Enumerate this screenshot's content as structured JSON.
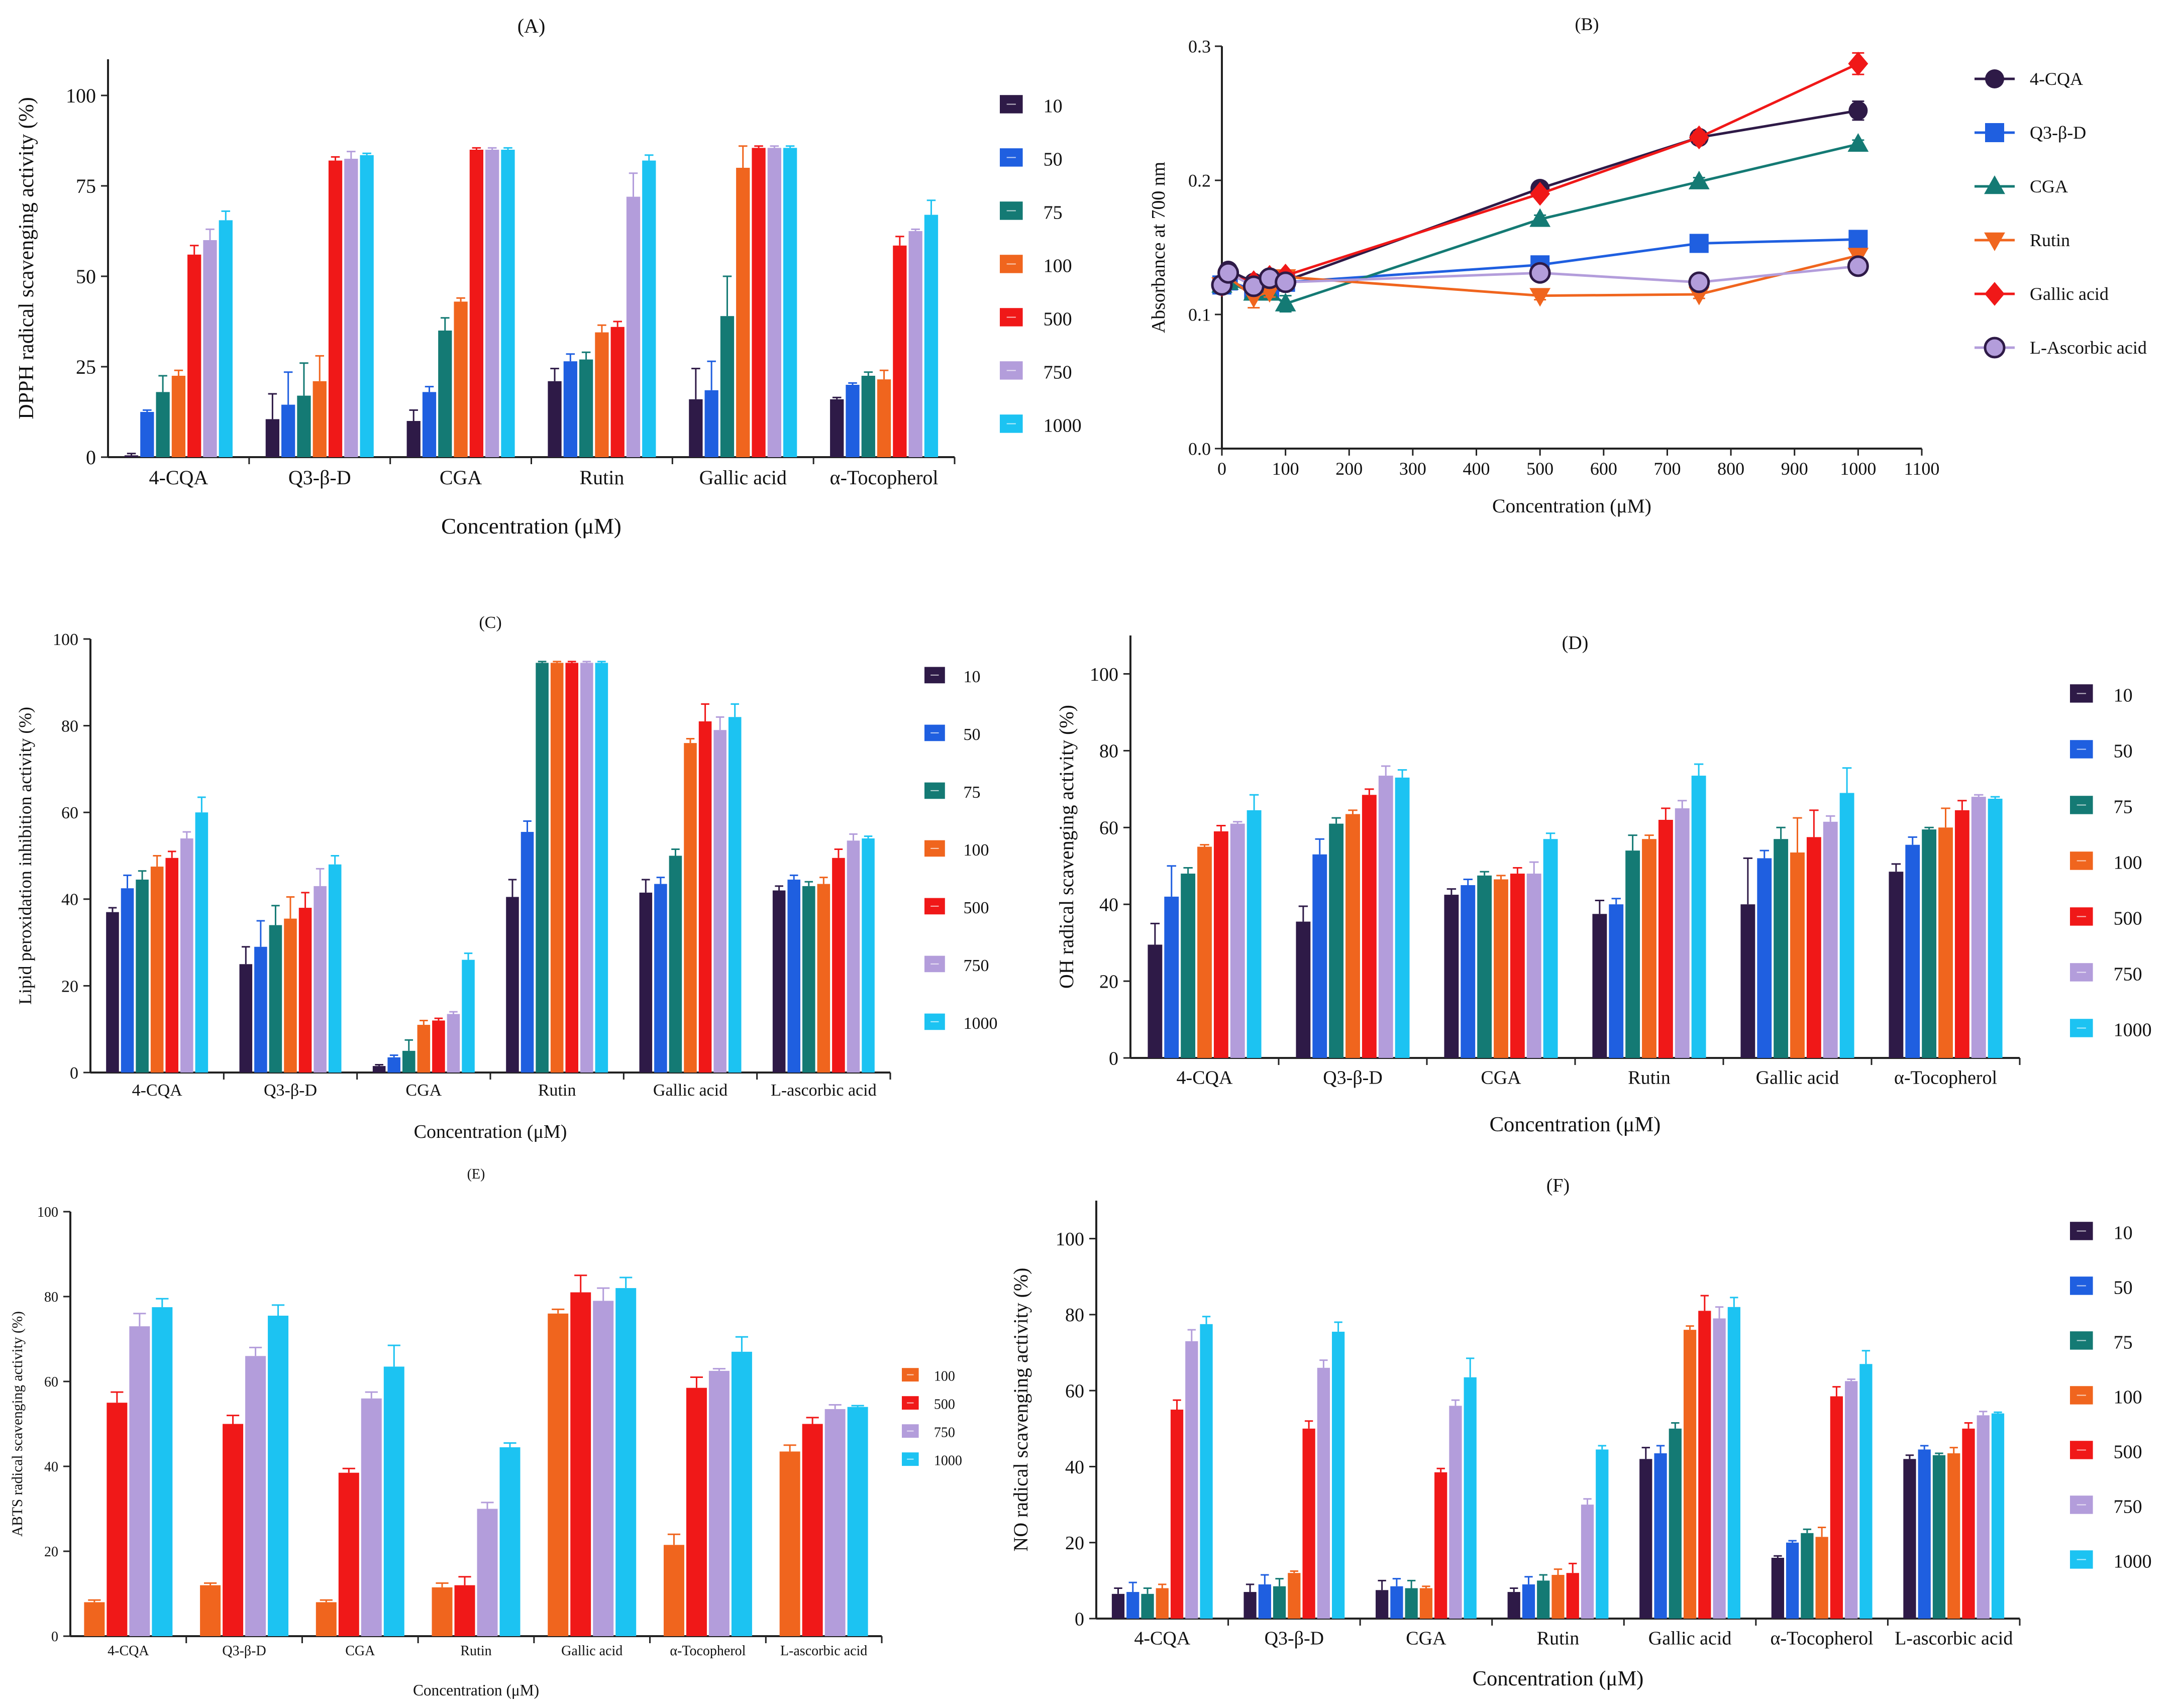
{
  "colors": {
    "10": "#2e1a47",
    "50": "#1f5fe0",
    "75": "#147a74",
    "100": "#f0651e",
    "500": "#f01818",
    "750": "#b39ddb",
    "1000": "#1cc3f2",
    "4-CQA": "#2e1a47",
    "Q3-β-D": "#1f5fe0",
    "CGA": "#147a74",
    "Rutin": "#f0651e",
    "Gallic acid": "#f01818",
    "L-Ascorbic acid": "#b39ddb"
  },
  "chart_data": [
    {
      "id": "A",
      "type": "bar",
      "title": "(A)",
      "xlabel": "Concentration (μM)",
      "ylabel": "DPPH radical scavenging activity (%)",
      "ylim": [
        0,
        110
      ],
      "yticks": [
        "0",
        "25",
        "50",
        "75",
        "100"
      ],
      "ytick_values": [
        0,
        25,
        50,
        75,
        100
      ],
      "categories": [
        "4-CQA",
        "Q3-β-D",
        "CGA",
        "Rutin",
        "Gallic acid",
        "α-Tocopherol"
      ],
      "series": [
        {
          "name": "10",
          "values": [
            0.5,
            10.5,
            10,
            21,
            16,
            16
          ],
          "errors": [
            0.5,
            7,
            3,
            3.5,
            8.5,
            0.5
          ]
        },
        {
          "name": "50",
          "values": [
            12.5,
            14.5,
            18,
            26.5,
            18.5,
            20
          ],
          "errors": [
            0.5,
            9,
            1.5,
            2,
            8,
            0.5
          ]
        },
        {
          "name": "75",
          "values": [
            18,
            17,
            35,
            27,
            39,
            22.5
          ],
          "errors": [
            4.5,
            9,
            3.5,
            2,
            11,
            1
          ]
        },
        {
          "name": "100",
          "values": [
            22.5,
            21,
            43,
            34.5,
            80,
            21.5
          ],
          "errors": [
            1.5,
            7,
            1,
            2,
            6,
            2.5
          ]
        },
        {
          "name": "500",
          "values": [
            56,
            82,
            85,
            36,
            85.5,
            58.5
          ],
          "errors": [
            2.5,
            1,
            0.5,
            1.5,
            0.5,
            2.5
          ]
        },
        {
          "name": "750",
          "values": [
            60,
            82.5,
            85,
            72,
            85.5,
            62.5
          ],
          "errors": [
            3,
            2,
            0.5,
            6.5,
            0.5,
            0.5
          ]
        },
        {
          "name": "1000",
          "values": [
            65.5,
            83.5,
            85,
            82,
            85.5,
            67
          ],
          "errors": [
            2.5,
            0.5,
            0.5,
            1.5,
            0.5,
            4
          ]
        }
      ]
    },
    {
      "id": "B",
      "type": "line",
      "title": "(B)",
      "xlabel": "Concentration (μM)",
      "ylabel": "Absorbance at 700 nm",
      "xlim": [
        0,
        1100
      ],
      "ylim": [
        0,
        0.3
      ],
      "xticks": [
        "0",
        "100",
        "200",
        "300",
        "400",
        "500",
        "600",
        "700",
        "800",
        "900",
        "1000",
        "1100"
      ],
      "xtick_values": [
        0,
        100,
        200,
        300,
        400,
        500,
        600,
        700,
        800,
        900,
        1000,
        1100
      ],
      "yticks": [
        "0.0",
        "0.1",
        "0.2",
        "0.3"
      ],
      "ytick_values": [
        0,
        0.1,
        0.2,
        0.3
      ],
      "x": [
        0,
        10,
        50,
        75,
        100,
        500,
        750,
        1000
      ],
      "series": [
        {
          "name": "4-CQA",
          "marker": "circle",
          "values": [
            0.123,
            0.133,
            0.124,
            0.128,
            0.125,
            0.194,
            0.232,
            0.252
          ],
          "errors": [
            0.002,
            0.003,
            0.003,
            0.003,
            0.003,
            0.004,
            0.004,
            0.007
          ]
        },
        {
          "name": "Q3-β-D",
          "marker": "square",
          "values": [
            0.122,
            0.125,
            0.118,
            0.118,
            0.124,
            0.137,
            0.153,
            0.156
          ],
          "errors": [
            0.002,
            0.003,
            0.004,
            0.004,
            0.003,
            0.003,
            0.003,
            0.003
          ]
        },
        {
          "name": "CGA",
          "marker": "triangle-up",
          "values": [
            0.122,
            0.124,
            0.116,
            0.116,
            0.108,
            0.171,
            0.199,
            0.227
          ],
          "errors": [
            0.002,
            0.003,
            0.004,
            0.004,
            0.006,
            0.003,
            0.003,
            0.003
          ]
        },
        {
          "name": "Rutin",
          "marker": "triangle-down",
          "values": [
            0.122,
            0.128,
            0.113,
            0.117,
            0.128,
            0.114,
            0.115,
            0.144
          ],
          "errors": [
            0.002,
            0.003,
            0.008,
            0.004,
            0.004,
            0.003,
            0.003,
            0.003
          ]
        },
        {
          "name": "Gallic acid",
          "marker": "diamond",
          "values": [
            0.122,
            0.129,
            0.124,
            0.128,
            0.129,
            0.19,
            0.232,
            0.287
          ],
          "errors": [
            0.002,
            0.003,
            0.003,
            0.003,
            0.003,
            0.003,
            0.004,
            0.008
          ]
        },
        {
          "name": "L-Ascorbic acid",
          "marker": "circle-open",
          "values": [
            0.122,
            0.131,
            0.121,
            0.127,
            0.124,
            0.131,
            0.124,
            0.136
          ],
          "errors": [
            0.002,
            0.003,
            0.006,
            0.004,
            0.004,
            0.003,
            0.003,
            0.003
          ]
        }
      ]
    },
    {
      "id": "C",
      "type": "bar",
      "title": "(C)",
      "xlabel": "Concentration (μM)",
      "ylabel": "Lipid peroxidation inhibition activity (%)",
      "ylim": [
        0,
        100
      ],
      "yticks": [
        "0",
        "20",
        "40",
        "60",
        "80",
        "100"
      ],
      "ytick_values": [
        0,
        20,
        40,
        60,
        80,
        100
      ],
      "categories": [
        "4-CQA",
        "Q3-β-D",
        "CGA",
        "Rutin",
        "Gallic acid",
        "L-ascorbic acid"
      ],
      "series": [
        {
          "name": "10",
          "values": [
            37,
            25,
            1.5,
            40.5,
            41.5,
            42
          ],
          "errors": [
            1,
            4,
            0.3,
            4,
            3,
            1
          ]
        },
        {
          "name": "50",
          "values": [
            42.5,
            29,
            3.5,
            55.5,
            43.5,
            44.5
          ],
          "errors": [
            3,
            6,
            0.5,
            2.5,
            1.5,
            1
          ]
        },
        {
          "name": "75",
          "values": [
            44.5,
            34,
            5,
            94.5,
            50,
            43
          ],
          "errors": [
            2,
            4.5,
            2.5,
            0.3,
            1.5,
            1
          ]
        },
        {
          "name": "100",
          "values": [
            47.5,
            35.5,
            11,
            94.5,
            76,
            43.5
          ],
          "errors": [
            2.5,
            5,
            1,
            0.3,
            1,
            1.5
          ]
        },
        {
          "name": "500",
          "values": [
            49.5,
            38,
            12,
            94.5,
            81,
            49.5
          ],
          "errors": [
            1.5,
            3.5,
            0.5,
            0.3,
            4,
            2
          ]
        },
        {
          "name": "750",
          "values": [
            54,
            43,
            13.5,
            94.5,
            79,
            53.5
          ],
          "errors": [
            1.5,
            4,
            0.5,
            0.3,
            3,
            1.5
          ]
        },
        {
          "name": "1000",
          "values": [
            60,
            48,
            26,
            94.5,
            82,
            54
          ],
          "errors": [
            3.5,
            2,
            1.5,
            0.3,
            3,
            0.5
          ]
        }
      ]
    },
    {
      "id": "D",
      "type": "bar",
      "title": "(D)",
      "xlabel": "Concentration (μM)",
      "ylabel": "OH radical scavenging activity (%)",
      "ylim": [
        0,
        110
      ],
      "yticks": [
        "0",
        "20",
        "40",
        "60",
        "80",
        "100"
      ],
      "ytick_values": [
        0,
        20,
        40,
        60,
        80,
        100
      ],
      "categories": [
        "4-CQA",
        "Q3-β-D",
        "CGA",
        "Rutin",
        "Gallic acid",
        "α-Tocopherol"
      ],
      "series": [
        {
          "name": "10",
          "values": [
            29.5,
            35.5,
            42.5,
            37.5,
            40,
            48.5
          ],
          "errors": [
            5.5,
            4,
            1.5,
            3.5,
            12,
            2
          ]
        },
        {
          "name": "50",
          "values": [
            42,
            53,
            45,
            40,
            52,
            55.5
          ],
          "errors": [
            8,
            4,
            1.5,
            1.5,
            2,
            2
          ]
        },
        {
          "name": "75",
          "values": [
            48,
            61,
            47.5,
            54,
            57,
            59.5
          ],
          "errors": [
            1.5,
            1.5,
            1,
            4,
            3,
            0.5
          ]
        },
        {
          "name": "100",
          "values": [
            55,
            63.5,
            46.5,
            57,
            53.5,
            60
          ],
          "errors": [
            0.5,
            1,
            1,
            1,
            9,
            5
          ]
        },
        {
          "name": "500",
          "values": [
            59,
            68.5,
            48,
            62,
            57.5,
            64.5
          ],
          "errors": [
            1.5,
            1.5,
            1.5,
            3,
            7,
            2.5
          ]
        },
        {
          "name": "750",
          "values": [
            61,
            73.5,
            48,
            65,
            61.5,
            68
          ],
          "errors": [
            0.5,
            2.5,
            3,
            2,
            1.5,
            0.5
          ]
        },
        {
          "name": "1000",
          "values": [
            64.5,
            73,
            57,
            73.5,
            69,
            67.5
          ],
          "errors": [
            4,
            2,
            1.5,
            3,
            6.5,
            0.5
          ]
        }
      ]
    },
    {
      "id": "E",
      "type": "bar",
      "title": "(E)",
      "xlabel": "Concentration (μM)",
      "ylabel": "ABTS radical scavenging activity (%)",
      "ylim": [
        0,
        100
      ],
      "yticks": [
        "0",
        "20",
        "40",
        "60",
        "80",
        "100"
      ],
      "ytick_values": [
        0,
        20,
        40,
        60,
        80,
        100
      ],
      "categories": [
        "4-CQA",
        "Q3-β-D",
        "CGA",
        "Rutin",
        "Gallic acid",
        "α-Tocopherol",
        "L-ascorbic acid"
      ],
      "series": [
        {
          "name": "100",
          "values": [
            8,
            12,
            8,
            11.5,
            76,
            21.5,
            43.5
          ],
          "errors": [
            0.5,
            0.5,
            0.5,
            1,
            1,
            2.5,
            1.5
          ]
        },
        {
          "name": "500",
          "values": [
            55,
            50,
            38.5,
            12,
            81,
            58.5,
            50
          ],
          "errors": [
            2.5,
            2,
            1,
            2,
            4,
            2.5,
            1.5
          ]
        },
        {
          "name": "750",
          "values": [
            73,
            66,
            56,
            30,
            79,
            62.5,
            53.5
          ],
          "errors": [
            3,
            2,
            1.5,
            1.5,
            3,
            0.5,
            1
          ]
        },
        {
          "name": "1000",
          "values": [
            77.5,
            75.5,
            63.5,
            44.5,
            82,
            67,
            54
          ],
          "errors": [
            2,
            2.5,
            5,
            1,
            2.5,
            3.5,
            0.3
          ]
        }
      ]
    },
    {
      "id": "F",
      "type": "bar",
      "title": "(F)",
      "xlabel": "Concentration (μM)",
      "ylabel": "NO radical scavenging activity (%)",
      "ylim": [
        0,
        110
      ],
      "yticks": [
        "0",
        "20",
        "40",
        "60",
        "80",
        "100"
      ],
      "ytick_values": [
        0,
        20,
        40,
        60,
        80,
        100
      ],
      "categories": [
        "4-CQA",
        "Q3-β-D",
        "CGA",
        "Rutin",
        "Gallic acid",
        "α-Tocopherol",
        "L-ascorbic acid"
      ],
      "series": [
        {
          "name": "10",
          "values": [
            6.5,
            7,
            7.5,
            7,
            42,
            16,
            42
          ],
          "errors": [
            1.5,
            2,
            2.5,
            1,
            3,
            0.5,
            1
          ]
        },
        {
          "name": "50",
          "values": [
            7,
            9,
            8.5,
            9,
            43.5,
            20,
            44.5
          ],
          "errors": [
            2.5,
            2.5,
            2,
            2,
            2,
            0.5,
            1
          ]
        },
        {
          "name": "75",
          "values": [
            6.5,
            8.5,
            8,
            10,
            50,
            22.5,
            43
          ],
          "errors": [
            1.5,
            2,
            2,
            1.5,
            1.5,
            1,
            0.5
          ]
        },
        {
          "name": "100",
          "values": [
            8,
            12,
            8,
            11.5,
            76,
            21.5,
            43.5
          ],
          "errors": [
            1,
            0.5,
            0.5,
            1.5,
            1,
            2.5,
            1.5
          ]
        },
        {
          "name": "500",
          "values": [
            55,
            50,
            38.5,
            12,
            81,
            58.5,
            50
          ],
          "errors": [
            2.5,
            2,
            1,
            2.5,
            4,
            2.5,
            1.5
          ]
        },
        {
          "name": "750",
          "values": [
            73,
            66,
            56,
            30,
            79,
            62.5,
            53.5
          ],
          "errors": [
            3,
            2,
            1.5,
            1.5,
            3,
            0.5,
            1
          ]
        },
        {
          "name": "1000",
          "values": [
            77.5,
            75.5,
            63.5,
            44.5,
            82,
            67,
            54
          ],
          "errors": [
            2,
            2.5,
            5,
            1,
            2.5,
            3.5,
            0.3
          ]
        }
      ]
    }
  ]
}
